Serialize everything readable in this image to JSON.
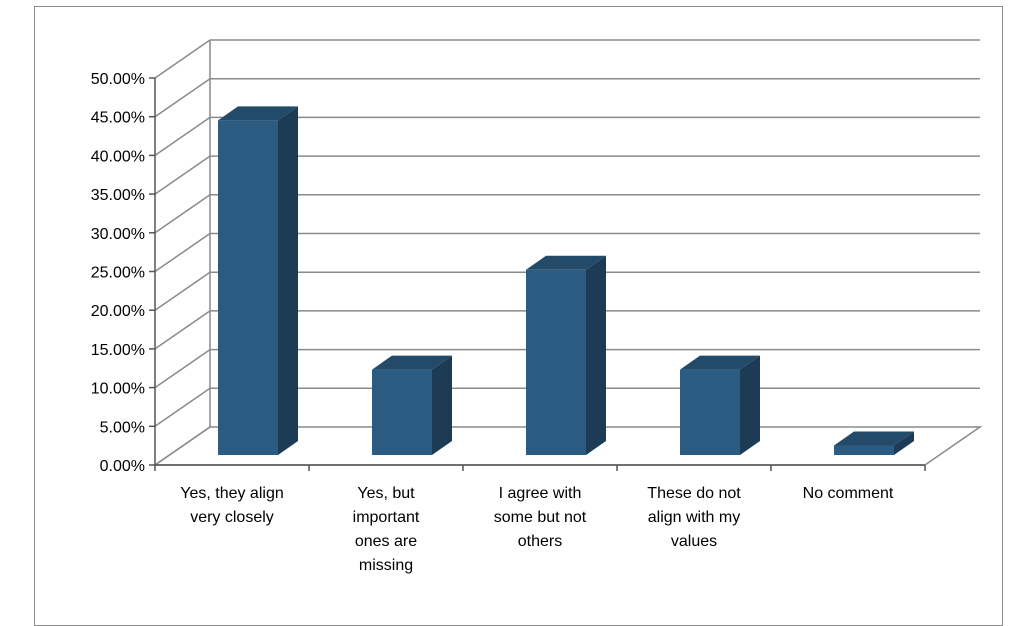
{
  "chart_data": {
    "type": "bar",
    "title": "",
    "xlabel": "",
    "ylabel": "",
    "categories": [
      "Yes, they align\nvery closely",
      "Yes, but\nimportant\nones are\nmissing",
      "I agree with\nsome but not\nothers",
      "These do not\nalign with my\nvalues",
      "No comment"
    ],
    "series": [
      {
        "values": [
          45.3,
          13.1,
          26.0,
          13.1,
          3.3
        ]
      }
    ],
    "ylim": [
      0,
      50
    ],
    "yticks": [
      "0.00%",
      "5.00%",
      "10.00%",
      "15.00%",
      "20.00%",
      "25.00%",
      "30.00%",
      "35.00%",
      "40.00%",
      "45.00%",
      "50.00%"
    ],
    "grid": true,
    "legend": "none",
    "three_d": true,
    "colors": {
      "bar_front": "#2b5b80",
      "bar_side": "#1e3b55",
      "bar_top": "#234a68",
      "grid": "#8a8a8a"
    }
  }
}
